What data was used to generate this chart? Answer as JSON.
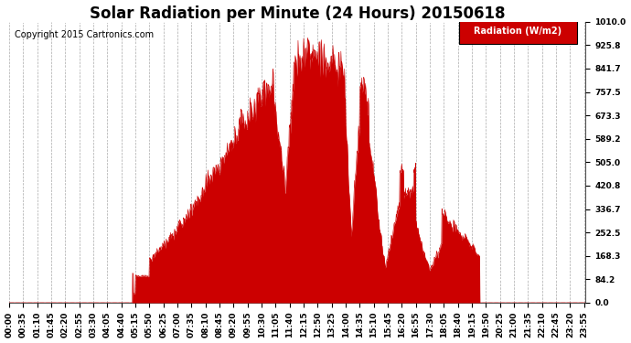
{
  "title": "Solar Radiation per Minute (24 Hours) 20150618",
  "copyright_text": "Copyright 2015 Cartronics.com",
  "legend_label": "Radiation (W/m2)",
  "legend_bg": "#cc0000",
  "legend_fg": "#ffffff",
  "fill_color": "#cc0000",
  "line_color": "#cc0000",
  "background_color": "#ffffff",
  "grid_color_h": "#ffffff",
  "grid_color_v": "#aaaaaa",
  "ytick_labels": [
    "0.0",
    "84.2",
    "168.3",
    "252.5",
    "336.7",
    "420.8",
    "505.0",
    "589.2",
    "673.3",
    "757.5",
    "841.7",
    "925.8",
    "1010.0"
  ],
  "ytick_values": [
    0.0,
    84.2,
    168.3,
    252.5,
    336.7,
    420.8,
    505.0,
    589.2,
    673.3,
    757.5,
    841.7,
    925.8,
    1010.0
  ],
  "ylim": [
    0.0,
    1010.0
  ],
  "xtick_labels": [
    "00:00",
    "00:35",
    "01:10",
    "01:45",
    "02:20",
    "02:55",
    "03:30",
    "04:05",
    "04:40",
    "05:15",
    "05:50",
    "06:25",
    "07:00",
    "07:35",
    "08:10",
    "08:45",
    "09:20",
    "09:55",
    "10:30",
    "11:05",
    "11:40",
    "12:15",
    "12:50",
    "13:25",
    "14:00",
    "14:35",
    "15:10",
    "15:45",
    "16:20",
    "16:55",
    "17:30",
    "18:05",
    "18:40",
    "19:15",
    "19:50",
    "20:25",
    "21:00",
    "21:35",
    "22:10",
    "22:45",
    "23:20",
    "23:55"
  ],
  "title_fontsize": 12,
  "copyright_fontsize": 7,
  "axis_fontsize": 6.5
}
